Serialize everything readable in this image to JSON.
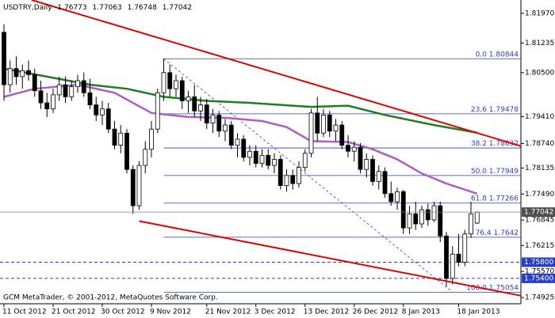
{
  "chart_data": {
    "type": "candlestick",
    "title": "USDTRY,Daily",
    "header_values": [
      1.76773,
      1.77063,
      1.76748,
      1.77042
    ],
    "footer": "GCM MetaTrader, © 2001-2012, MetaQuotes Software Corp.",
    "up_color": "#ffffff",
    "down_color": "#000000",
    "ylim": [
      1.7477,
      1.823
    ],
    "yticks": [
      {
        "value": 1.8197,
        "label": "1.81970"
      },
      1.81235,
      {
        "value": 1.805,
        "label": "1.80500"
      },
      {
        "value": 1.7941,
        "label": "1.79410"
      },
      {
        "value": 1.7874,
        "label": "1.78740"
      },
      1.78135,
      {
        "value": 1.7749,
        "label": "1.77490"
      },
      1.76845,
      1.76215,
      {
        "value": 1.7557,
        "label": "1.75570"
      },
      1.74925
    ],
    "categories": [
      "11 Oct 2012",
      null,
      null,
      null,
      null,
      null,
      null,
      null,
      "21 Oct 2012",
      null,
      null,
      null,
      null,
      null,
      null,
      null,
      "30 Oct 2012",
      null,
      null,
      null,
      null,
      null,
      null,
      null,
      "9 Nov 2012",
      null,
      null,
      null,
      null,
      null,
      null,
      null,
      null,
      "21 Nov 2012",
      null,
      null,
      null,
      null,
      null,
      null,
      null,
      "3 Dec 2012",
      null,
      null,
      null,
      null,
      null,
      null,
      null,
      "13 Dec 2012",
      null,
      null,
      null,
      null,
      null,
      null,
      null,
      "26 Dec 2012",
      null,
      null,
      null,
      null,
      null,
      null,
      null,
      "8 Jan 2013",
      null,
      null,
      null,
      null,
      null,
      null,
      null,
      null,
      "18 Jan 2013",
      null,
      null,
      null
    ],
    "open": [
      1.815,
      1.802,
      1.806,
      1.804,
      1.8055,
      1.8045,
      1.8005,
      1.7975,
      1.796,
      1.7995,
      1.802,
      1.799,
      1.8015,
      1.803,
      1.8,
      1.797,
      1.7945,
      1.796,
      1.791,
      1.787,
      1.79,
      1.781,
      1.772,
      1.782,
      1.786,
      1.791,
      1.8,
      1.805,
      1.801,
      1.803,
      1.798,
      1.799,
      1.7955,
      1.797,
      1.7925,
      1.7945,
      1.7905,
      1.792,
      1.787,
      1.7885,
      1.784,
      1.7855,
      1.7825,
      1.7845,
      1.782,
      1.7835,
      1.777,
      1.7795,
      1.7775,
      1.7815,
      1.785,
      1.795,
      1.79,
      1.7945,
      1.7905,
      1.792,
      1.787,
      1.7855,
      1.7865,
      1.781,
      1.7835,
      1.778,
      1.7805,
      1.775,
      1.773,
      1.7755,
      1.7665,
      1.77,
      1.7675,
      1.771,
      1.7685,
      1.772,
      1.7645,
      1.754,
      1.76,
      1.758,
      1.765,
      1.7677
    ],
    "high": [
      1.817,
      1.808,
      1.809,
      1.807,
      1.808,
      1.806,
      1.803,
      1.8,
      1.801,
      1.804,
      1.804,
      1.803,
      1.8045,
      1.805,
      1.8035,
      1.799,
      1.798,
      1.7975,
      1.793,
      1.792,
      1.791,
      1.782,
      1.783,
      1.788,
      1.793,
      1.801,
      1.8085,
      1.807,
      1.8045,
      1.804,
      1.8005,
      1.802,
      1.799,
      1.7985,
      1.796,
      1.7955,
      1.7935,
      1.793,
      1.79,
      1.7895,
      1.787,
      1.787,
      1.786,
      1.786,
      1.785,
      1.7845,
      1.781,
      1.781,
      1.783,
      1.786,
      1.796,
      1.799,
      1.796,
      1.7955,
      1.7935,
      1.793,
      1.7895,
      1.788,
      1.7875,
      1.785,
      1.7845,
      1.782,
      1.7815,
      1.778,
      1.7765,
      1.776,
      1.772,
      1.773,
      1.772,
      1.7725,
      1.773,
      1.773,
      1.7655,
      1.762,
      1.765,
      1.766,
      1.773,
      1.7706
    ],
    "low": [
      1.798,
      1.8,
      1.802,
      1.801,
      1.803,
      1.799,
      1.796,
      1.794,
      1.795,
      1.798,
      1.7975,
      1.798,
      1.8,
      1.799,
      1.796,
      1.793,
      1.792,
      1.79,
      1.786,
      1.785,
      1.78,
      1.77,
      1.771,
      1.78,
      1.784,
      1.79,
      1.798,
      1.799,
      1.799,
      1.796,
      1.795,
      1.794,
      1.793,
      1.791,
      1.79,
      1.789,
      1.788,
      1.786,
      1.784,
      1.783,
      1.782,
      1.7815,
      1.7815,
      1.781,
      1.78,
      1.776,
      1.7755,
      1.776,
      1.7765,
      1.7805,
      1.784,
      1.788,
      1.789,
      1.789,
      1.788,
      1.786,
      1.784,
      1.783,
      1.78,
      1.779,
      1.777,
      1.776,
      1.774,
      1.772,
      1.771,
      1.765,
      1.765,
      1.766,
      1.7665,
      1.767,
      1.768,
      1.763,
      1.752,
      1.7525,
      1.757,
      1.757,
      1.764,
      1.7675
    ],
    "close": [
      1.802,
      1.806,
      1.804,
      1.8055,
      1.8045,
      1.8005,
      1.7975,
      1.796,
      1.7995,
      1.802,
      1.799,
      1.8015,
      1.803,
      1.8,
      1.797,
      1.7945,
      1.796,
      1.791,
      1.787,
      1.79,
      1.781,
      1.772,
      1.782,
      1.786,
      1.791,
      1.8,
      1.805,
      1.801,
      1.803,
      1.798,
      1.799,
      1.7955,
      1.797,
      1.7925,
      1.7945,
      1.7905,
      1.792,
      1.787,
      1.7885,
      1.784,
      1.7855,
      1.7825,
      1.7845,
      1.782,
      1.7835,
      1.777,
      1.7795,
      1.7775,
      1.7815,
      1.785,
      1.795,
      1.79,
      1.7945,
      1.7905,
      1.792,
      1.787,
      1.7855,
      1.7865,
      1.781,
      1.7835,
      1.778,
      1.7805,
      1.775,
      1.773,
      1.7755,
      1.7665,
      1.77,
      1.7675,
      1.771,
      1.7685,
      1.772,
      1.7645,
      1.754,
      1.76,
      1.758,
      1.765,
      1.77,
      1.7704
    ],
    "series": [
      {
        "color": "#1e7d1e",
        "x": [
          0,
          7,
          14,
          20,
          26,
          33,
          40,
          50,
          56,
          62,
          70,
          77
        ],
        "values": [
          1.806,
          1.804,
          1.802,
          1.801,
          1.799,
          1.798,
          1.7975,
          1.7965,
          1.7968,
          1.7945,
          1.792,
          1.7901
        ]
      },
      {
        "color": "#b05cc8",
        "x": [
          0,
          5,
          12,
          18,
          24,
          30,
          36,
          42,
          46,
          50,
          56,
          60,
          64,
          68,
          72,
          77
        ],
        "values": [
          1.799,
          1.801,
          1.802,
          1.8,
          1.795,
          1.794,
          1.7938,
          1.793,
          1.7915,
          1.788,
          1.7878,
          1.786,
          1.7835,
          1.78,
          1.7775,
          1.775
        ]
      }
    ],
    "trend_lines": [
      {
        "color": "#e00000",
        "x": [
          4.5,
          84.1
        ],
        "values": [
          1.823,
          1.7868
        ]
      },
      {
        "color": "#e00000",
        "x": [
          22,
          84.1
        ],
        "values": [
          1.7682,
          1.7497
        ]
      }
    ],
    "fibonacci": {
      "color": "#2a3fbf",
      "x": [
        26,
        84.1
      ],
      "levels": [
        {
          "label": "0.0",
          "value": 1.80844
        },
        {
          "label": "23.6",
          "value": 1.79478
        },
        {
          "label": "38.2",
          "value": 1.78632
        },
        {
          "label": "50.0",
          "value": 1.77949
        },
        {
          "label": "61.8",
          "value": 1.77266
        },
        {
          "label": "76.4",
          "value": 1.7642
        },
        {
          "label": "100.0",
          "value": 1.75054
        }
      ]
    },
    "price_line": {
      "value": 1.77042,
      "color": "#808080"
    },
    "levels": [
      {
        "value": 1.758,
        "label": "1.75800",
        "color": "#2a3fbf"
      },
      {
        "value": 1.754,
        "label": "1.75400",
        "color": "#2a3fbf"
      }
    ]
  }
}
